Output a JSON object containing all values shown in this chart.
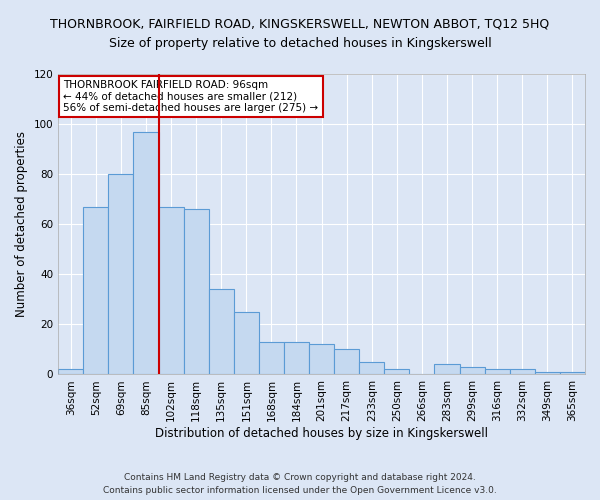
{
  "title1": "THORNBROOK, FAIRFIELD ROAD, KINGSKERSWELL, NEWTON ABBOT, TQ12 5HQ",
  "title2": "Size of property relative to detached houses in Kingskerswell",
  "xlabel": "Distribution of detached houses by size in Kingskerswell",
  "ylabel": "Number of detached properties",
  "categories": [
    "36sqm",
    "52sqm",
    "69sqm",
    "85sqm",
    "102sqm",
    "118sqm",
    "135sqm",
    "151sqm",
    "168sqm",
    "184sqm",
    "201sqm",
    "217sqm",
    "233sqm",
    "250sqm",
    "266sqm",
    "283sqm",
    "299sqm",
    "316sqm",
    "332sqm",
    "349sqm",
    "365sqm"
  ],
  "values": [
    2,
    67,
    80,
    97,
    67,
    66,
    34,
    25,
    13,
    13,
    12,
    10,
    5,
    2,
    0,
    4,
    3,
    2,
    2,
    1,
    1
  ],
  "bar_color": "#c5d9f0",
  "bar_edge_color": "#5b9bd5",
  "ylim": [
    0,
    120
  ],
  "yticks": [
    0,
    20,
    40,
    60,
    80,
    100,
    120
  ],
  "red_line_bar_index": 4,
  "annotation_text_line1": "THORNBROOK FAIRFIELD ROAD: 96sqm",
  "annotation_text_line2": "← 44% of detached houses are smaller (212)",
  "annotation_text_line3": "56% of semi-detached houses are larger (275) →",
  "annotation_box_color": "#ffffff",
  "annotation_border_color": "#cc0000",
  "red_line_color": "#cc0000",
  "footer1": "Contains HM Land Registry data © Crown copyright and database right 2024.",
  "footer2": "Contains public sector information licensed under the Open Government Licence v3.0.",
  "background_color": "#dce6f5",
  "plot_bg_color": "#dce6f5",
  "grid_color": "#ffffff",
  "title1_fontsize": 9,
  "title2_fontsize": 9,
  "axis_label_fontsize": 8.5,
  "tick_fontsize": 7.5,
  "annotation_fontsize": 7.5,
  "footer_fontsize": 6.5
}
